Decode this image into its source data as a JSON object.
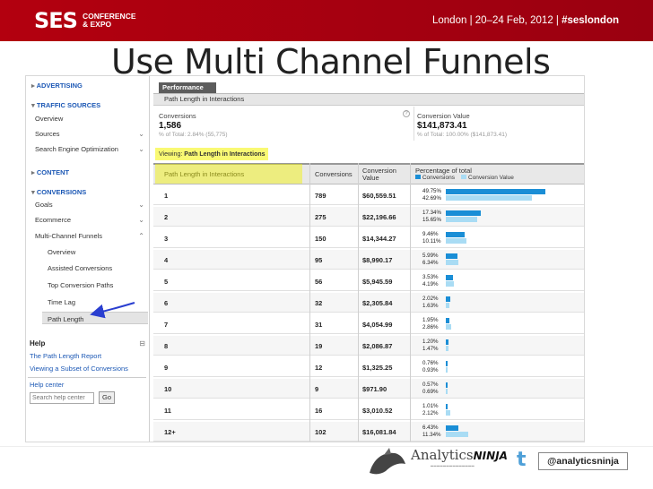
{
  "header": {
    "logo": "SES",
    "logo_sub_1": "CONFERENCE",
    "logo_sub_2": "& EXPO",
    "event": "London | 20–24 Feb, 2012 | ",
    "hashtag": "#seslondon"
  },
  "slide_title": "Use Multi Channel Funnels",
  "nav": {
    "advertising": "ADVERTISING",
    "traffic_sources": "TRAFFIC SOURCES",
    "overview": "Overview",
    "sources": "Sources",
    "seo": "Search Engine Optimization",
    "content": "CONTENT",
    "conversions": "CONVERSIONS",
    "goals": "Goals",
    "ecommerce": "Ecommerce",
    "mcf": "Multi-Channel Funnels",
    "mcf_overview": "Overview",
    "assisted": "Assisted Conversions",
    "top_paths": "Top Conversion Paths",
    "time_lag": "Time Lag",
    "path_length": "Path Length",
    "help": "Help",
    "help_link_1": "The Path Length Report",
    "help_link_2": "Viewing a Subset of Conversions",
    "help_center": "Help center",
    "search_placeholder": "Search help center",
    "go": "Go"
  },
  "main": {
    "tab": "Performance",
    "subtab": "Path Length in Interactions",
    "conversions_label": "Conversions",
    "conversions_value": "1,586",
    "conversions_total": "% of Total: 2.84% (55,775)",
    "value_label": "Conversion Value",
    "value_value": "$141,873.41",
    "value_total": "% of Total: 100.00% ($141,873.41)",
    "viewing_label": "Viewing:",
    "viewing_value": "Path Length in Interactions"
  },
  "table": {
    "col_path": "Path Length in Interactions",
    "col_conv": "Conversions",
    "col_value_1": "Conversion",
    "col_value_2": "Value",
    "col_pct": "Percentage of total",
    "legend_conv": "Conversions",
    "legend_value": "Conversion Value",
    "colors": {
      "conv": "#1a8ed6",
      "value": "#a9dcf4"
    },
    "rows": [
      {
        "path": "1",
        "conv": "789",
        "value": "$60,559.51",
        "pc": "49.75%",
        "pv": "42.69%",
        "fc": 0.4975,
        "fv": 0.4269
      },
      {
        "path": "2",
        "conv": "275",
        "value": "$22,196.66",
        "pc": "17.34%",
        "pv": "15.65%",
        "fc": 0.1734,
        "fv": 0.1565
      },
      {
        "path": "3",
        "conv": "150",
        "value": "$14,344.27",
        "pc": "9.46%",
        "pv": "10.11%",
        "fc": 0.0946,
        "fv": 0.1011
      },
      {
        "path": "4",
        "conv": "95",
        "value": "$8,990.17",
        "pc": "5.99%",
        "pv": "6.34%",
        "fc": 0.0599,
        "fv": 0.0634
      },
      {
        "path": "5",
        "conv": "56",
        "value": "$5,945.59",
        "pc": "3.53%",
        "pv": "4.19%",
        "fc": 0.0353,
        "fv": 0.0419
      },
      {
        "path": "6",
        "conv": "32",
        "value": "$2,305.84",
        "pc": "2.02%",
        "pv": "1.63%",
        "fc": 0.0202,
        "fv": 0.0163
      },
      {
        "path": "7",
        "conv": "31",
        "value": "$4,054.99",
        "pc": "1.95%",
        "pv": "2.86%",
        "fc": 0.0195,
        "fv": 0.0286
      },
      {
        "path": "8",
        "conv": "19",
        "value": "$2,086.87",
        "pc": "1.20%",
        "pv": "1.47%",
        "fc": 0.012,
        "fv": 0.0147
      },
      {
        "path": "9",
        "conv": "12",
        "value": "$1,325.25",
        "pc": "0.76%",
        "pv": "0.93%",
        "fc": 0.0076,
        "fv": 0.0093
      },
      {
        "path": "10",
        "conv": "9",
        "value": "$971.90",
        "pc": "0.57%",
        "pv": "0.69%",
        "fc": 0.0057,
        "fv": 0.0069
      },
      {
        "path": "11",
        "conv": "16",
        "value": "$3,010.52",
        "pc": "1.01%",
        "pv": "2.12%",
        "fc": 0.0101,
        "fv": 0.0212
      },
      {
        "path": "12+",
        "conv": "102",
        "value": "$16,081.84",
        "pc": "6.43%",
        "pv": "11.34%",
        "fc": 0.0643,
        "fv": 0.1134
      }
    ]
  },
  "footer": {
    "brand_1": "Analytics",
    "brand_2": "NINJA",
    "twitter_glyph": "t",
    "handle": "@analyticsninja"
  }
}
